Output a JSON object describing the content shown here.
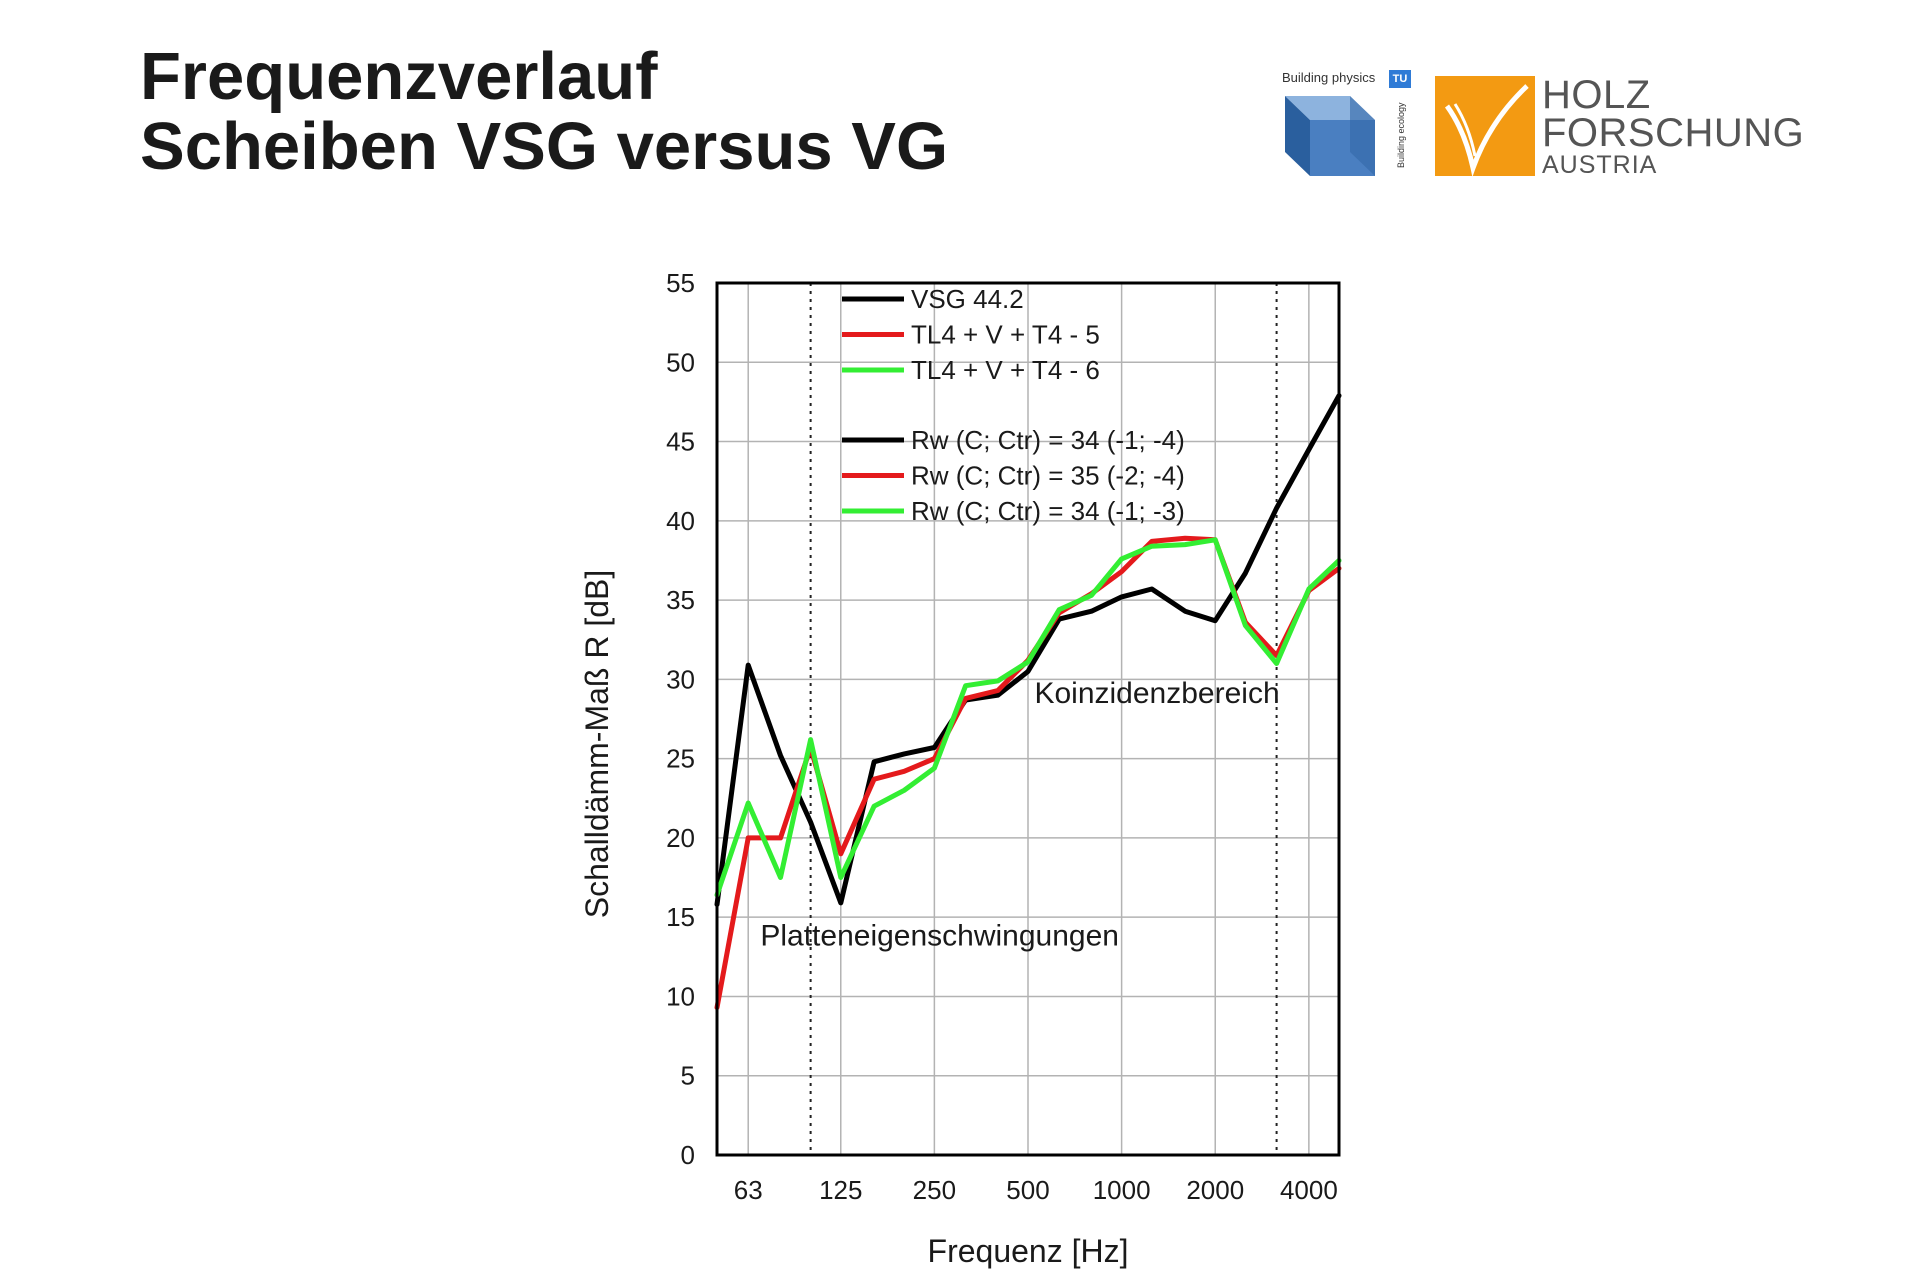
{
  "page": {
    "title_line1": "Frequenzverlauf",
    "title_line2": "Scheiben VSG versus VG"
  },
  "logos": {
    "building_physics": {
      "text": "Building physics",
      "badge": "TU",
      "side_text": "Building ecology",
      "colors": [
        "#4a7fc1",
        "#2a5f9e",
        "#8db3de"
      ]
    },
    "holzforschung": {
      "line1": "HOLZ",
      "line2": "FORSCHUNG",
      "line3": "AUSTRIA",
      "accent": "#f39a12",
      "text_color": "#555555"
    }
  },
  "chart_data": {
    "type": "line",
    "xlabel": "Frequenz [Hz]",
    "ylabel": "Schalldämm-Maß R [dB]",
    "x": [
      50,
      63,
      80,
      100,
      125,
      160,
      200,
      250,
      315,
      400,
      500,
      630,
      800,
      1000,
      1250,
      1600,
      2000,
      2500,
      3150,
      4000,
      5000
    ],
    "x_scale": "log",
    "x_ticks": [
      63,
      125,
      250,
      500,
      1000,
      2000,
      4000
    ],
    "x_tick_labels": [
      "63",
      "125",
      "250",
      "500",
      "1000",
      "2000",
      "4000"
    ],
    "xlim": [
      50,
      5000
    ],
    "ylim": [
      0,
      55
    ],
    "y_ticks": [
      0,
      5,
      10,
      15,
      20,
      25,
      30,
      35,
      40,
      45,
      50,
      55
    ],
    "grid": true,
    "dotted_vlines": [
      100,
      3150
    ],
    "legend_position": "top-left",
    "series": [
      {
        "name": "VSG 44.2",
        "color": "#000000",
        "values": [
          15.8,
          30.9,
          25.2,
          21.0,
          15.9,
          24.8,
          25.3,
          25.7,
          28.7,
          29.0,
          30.5,
          33.8,
          34.3,
          35.2,
          35.7,
          34.3,
          33.7,
          36.7,
          40.8,
          44.5,
          47.9
        ]
      },
      {
        "name": "TL4 + V + T4 - 5",
        "color": "#e41a1c",
        "values": [
          9.3,
          20.0,
          20.0,
          25.7,
          19.0,
          23.7,
          24.2,
          25.0,
          28.8,
          29.3,
          31.2,
          34.2,
          35.4,
          36.8,
          38.7,
          38.9,
          38.8,
          33.6,
          31.5,
          35.6,
          37.0
        ]
      },
      {
        "name": "TL4 + V + T4 - 6",
        "color": "#33ee33",
        "values": [
          16.4,
          22.2,
          17.5,
          26.2,
          17.5,
          22.0,
          23.0,
          24.4,
          29.6,
          29.9,
          31.1,
          34.4,
          35.3,
          37.6,
          38.4,
          38.5,
          38.8,
          33.4,
          31.0,
          35.7,
          37.5
        ]
      }
    ],
    "rating_legend": [
      {
        "text": "Rw (C; Ctr) = 34 (-1; -4)",
        "color": "#000000"
      },
      {
        "text": "Rw (C; Ctr) = 35 (-2; -4)",
        "color": "#e41a1c"
      },
      {
        "text": "Rw (C; Ctr) = 34 (-1; -3)",
        "color": "#33ee33"
      }
    ],
    "annotations": [
      {
        "text": "Koinzidenzbereich",
        "at_x": 1300,
        "at_y": 28.5
      },
      {
        "text": "Platteneigenschwingungen",
        "at_x": 260,
        "at_y": 13.2
      }
    ]
  }
}
